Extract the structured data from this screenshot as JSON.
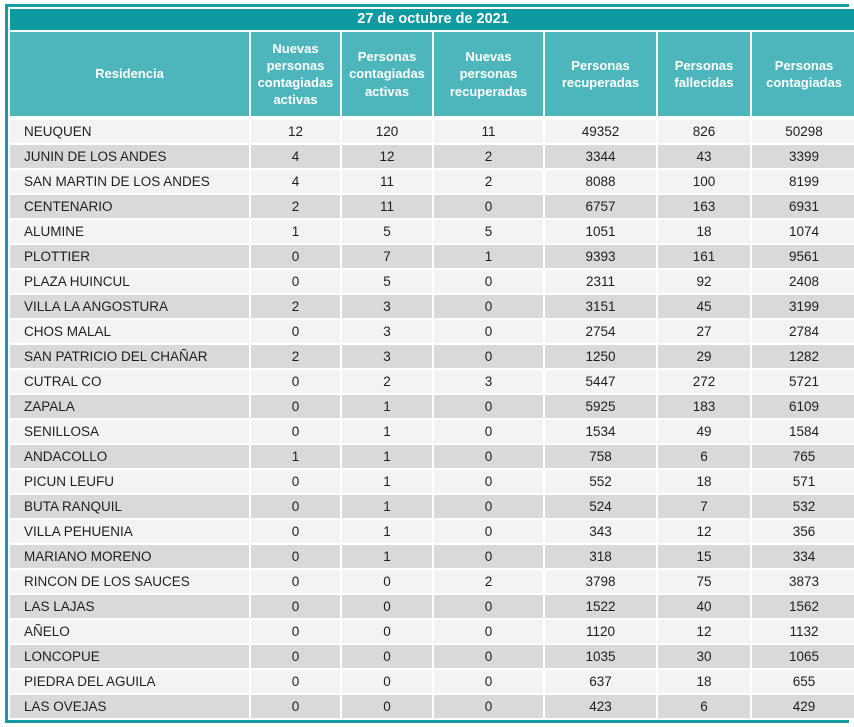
{
  "title_bar": {
    "date_label": "27 de octubre de 2021"
  },
  "colors": {
    "title_bg": "#0d9aa1",
    "header_bg": "#4db6bc",
    "outer_border": "#199ba2",
    "header_text": "#ffffff",
    "row_light": "#f3f3f3",
    "row_dark": "#d9d9d9",
    "row_text": "#1f1f1f"
  },
  "chart_data": {
    "type": "table",
    "title": "27 de octubre de 2021",
    "columns": [
      "Residencia",
      "Nuevas personas contagiadas activas",
      "Personas contagiadas activas",
      "Nuevas personas recuperadas",
      "Personas recuperadas",
      "Personas fallecidas",
      "Personas contagiadas"
    ],
    "rows": [
      [
        "NEUQUEN",
        12,
        120,
        11,
        49352,
        826,
        50298
      ],
      [
        "JUNIN DE LOS ANDES",
        4,
        12,
        2,
        3344,
        43,
        3399
      ],
      [
        "SAN MARTIN DE LOS ANDES",
        4,
        11,
        2,
        8088,
        100,
        8199
      ],
      [
        "CENTENARIO",
        2,
        11,
        0,
        6757,
        163,
        6931
      ],
      [
        "ALUMINE",
        1,
        5,
        5,
        1051,
        18,
        1074
      ],
      [
        "PLOTTIER",
        0,
        7,
        1,
        9393,
        161,
        9561
      ],
      [
        "PLAZA HUINCUL",
        0,
        5,
        0,
        2311,
        92,
        2408
      ],
      [
        "VILLA LA ANGOSTURA",
        2,
        3,
        0,
        3151,
        45,
        3199
      ],
      [
        "CHOS MALAL",
        0,
        3,
        0,
        2754,
        27,
        2784
      ],
      [
        "SAN PATRICIO DEL CHAÑAR",
        2,
        3,
        0,
        1250,
        29,
        1282
      ],
      [
        "CUTRAL CO",
        0,
        2,
        3,
        5447,
        272,
        5721
      ],
      [
        "ZAPALA",
        0,
        1,
        0,
        5925,
        183,
        6109
      ],
      [
        "SENILLOSA",
        0,
        1,
        0,
        1534,
        49,
        1584
      ],
      [
        "ANDACOLLO",
        1,
        1,
        0,
        758,
        6,
        765
      ],
      [
        "PICUN LEUFU",
        0,
        1,
        0,
        552,
        18,
        571
      ],
      [
        "BUTA RANQUIL",
        0,
        1,
        0,
        524,
        7,
        532
      ],
      [
        "VILLA PEHUENIA",
        0,
        1,
        0,
        343,
        12,
        356
      ],
      [
        "MARIANO MORENO",
        0,
        1,
        0,
        318,
        15,
        334
      ],
      [
        "RINCON DE LOS SAUCES",
        0,
        0,
        2,
        3798,
        75,
        3873
      ],
      [
        "LAS LAJAS",
        0,
        0,
        0,
        1522,
        40,
        1562
      ],
      [
        "AÑELO",
        0,
        0,
        0,
        1120,
        12,
        1132
      ],
      [
        "LONCOPUE",
        0,
        0,
        0,
        1035,
        30,
        1065
      ],
      [
        "PIEDRA DEL AGUILA",
        0,
        0,
        0,
        637,
        18,
        655
      ],
      [
        "LAS OVEJAS",
        0,
        0,
        0,
        423,
        6,
        429
      ]
    ]
  }
}
